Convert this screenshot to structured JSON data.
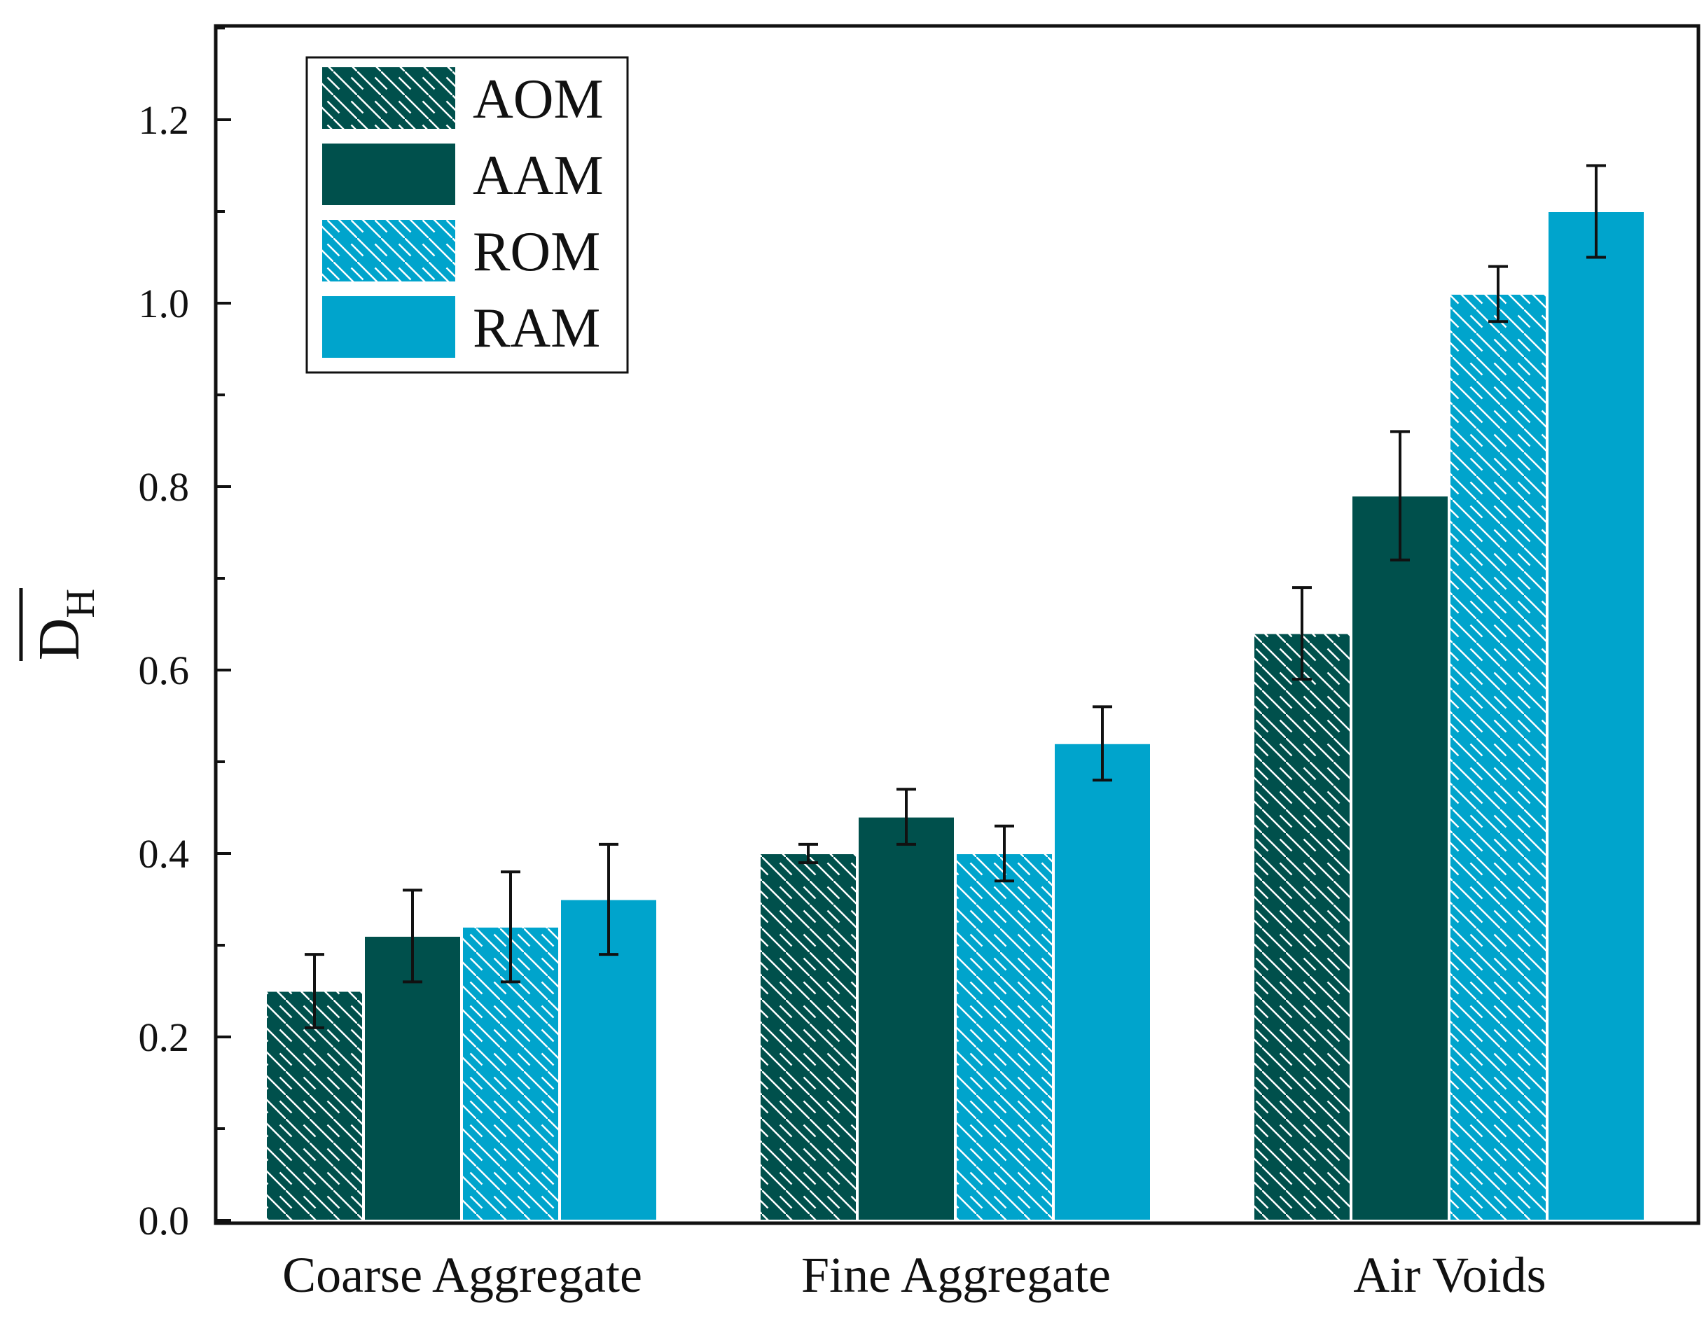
{
  "chart_data": {
    "type": "bar",
    "ylabel": "D",
    "ylabel_subscript": "H",
    "ylabel_overline": true,
    "xlabel": "",
    "ylim": [
      0,
      1.3
    ],
    "yticks": [
      0.0,
      0.2,
      0.4,
      0.6,
      0.8,
      1.0,
      1.2
    ],
    "ytick_labels": [
      "0.0",
      "0.2",
      "0.4",
      "0.6",
      "0.8",
      "1.0",
      "1.2"
    ],
    "minor_ticks": true,
    "grid": false,
    "legend_position": "top-left",
    "categories": [
      "Coarse Aggregate",
      "Fine Aggregate",
      "Air Voids"
    ],
    "series": [
      {
        "name": "AOM",
        "values": [
          0.25,
          0.4,
          0.64
        ],
        "errors": [
          0.04,
          0.01,
          0.05
        ],
        "color": "#00504c",
        "hatched": true
      },
      {
        "name": "AAM",
        "values": [
          0.31,
          0.44,
          0.79
        ],
        "errors": [
          0.05,
          0.03,
          0.07
        ],
        "color": "#00504c",
        "hatched": false
      },
      {
        "name": "ROM",
        "values": [
          0.32,
          0.4,
          1.01
        ],
        "errors": [
          0.06,
          0.03,
          0.03
        ],
        "color": "#00a4cc",
        "hatched": true
      },
      {
        "name": "RAM",
        "values": [
          0.35,
          0.52,
          1.1
        ],
        "errors": [
          0.06,
          0.04,
          0.05
        ],
        "color": "#00a4cc",
        "hatched": false
      }
    ]
  }
}
